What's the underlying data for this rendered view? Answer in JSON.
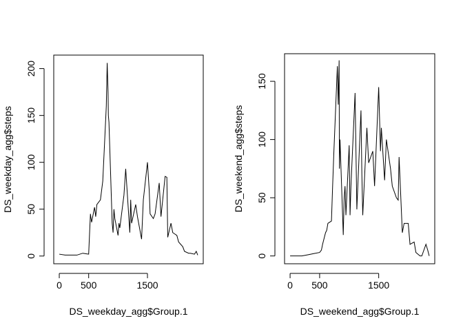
{
  "chart_data": [
    {
      "type": "line",
      "xlabel": "DS_weekday_agg$Group.1",
      "ylabel": "DS_weekday_agg$steps",
      "x": [
        0,
        100,
        200,
        300,
        400,
        500,
        530,
        550,
        600,
        620,
        640,
        700,
        720,
        740,
        800,
        815,
        830,
        835,
        845,
        900,
        915,
        930,
        945,
        1000,
        1015,
        1030,
        1100,
        1130,
        1200,
        1215,
        1230,
        1300,
        1330,
        1400,
        1430,
        1500,
        1530,
        1545,
        1600,
        1630,
        1700,
        1730,
        1800,
        1830,
        1845,
        1900,
        1930,
        2000,
        2030,
        2100,
        2130,
        2200,
        2230,
        2300,
        2330,
        2355
      ],
      "series": [
        {
          "color": "#000000",
          "values": [
            2,
            1,
            1,
            1,
            3,
            2,
            45,
            36,
            52,
            42,
            55,
            60,
            70,
            80,
            160,
            206,
            175,
            150,
            143,
            35,
            25,
            50,
            40,
            22,
            35,
            30,
            65,
            93,
            25,
            60,
            35,
            55,
            42,
            18,
            60,
            100,
            70,
            45,
            40,
            45,
            78,
            42,
            85,
            84,
            20,
            35,
            25,
            22,
            15,
            10,
            5,
            3,
            3,
            2,
            5,
            1
          ]
        }
      ],
      "xlim": [
        -94,
        2449
      ],
      "ylim": [
        -8.24,
        214.4
      ],
      "xticks": [
        0,
        500,
        1500
      ],
      "yticks": [
        0,
        50,
        100,
        150,
        200
      ]
    },
    {
      "type": "line",
      "xlabel": "DS_weekend_agg$Group.1",
      "ylabel": "DS_weekend_agg$steps",
      "x": [
        0,
        100,
        200,
        300,
        400,
        500,
        530,
        550,
        600,
        620,
        640,
        700,
        720,
        740,
        800,
        815,
        830,
        835,
        845,
        900,
        915,
        930,
        945,
        1000,
        1015,
        1030,
        1100,
        1130,
        1200,
        1215,
        1230,
        1300,
        1330,
        1400,
        1430,
        1500,
        1530,
        1545,
        1600,
        1630,
        1700,
        1730,
        1800,
        1830,
        1845,
        1900,
        1930,
        2000,
        2030,
        2100,
        2130,
        2200,
        2230,
        2300,
        2330,
        2355
      ],
      "series": [
        {
          "color": "#000000",
          "values": [
            0,
            0,
            0,
            1,
            2,
            3,
            5,
            10,
            20,
            22,
            28,
            30,
            60,
            88,
            163,
            130,
            168,
            75,
            100,
            18,
            50,
            60,
            35,
            95,
            35,
            60,
            140,
            40,
            125,
            70,
            35,
            110,
            80,
            90,
            60,
            145,
            90,
            110,
            65,
            100,
            75,
            60,
            50,
            48,
            85,
            20,
            28,
            28,
            10,
            12,
            3,
            0,
            0,
            10,
            5,
            0
          ]
        }
      ],
      "xlim": [
        -94,
        2449
      ],
      "ylim": [
        -6.7,
        173.7
      ],
      "xticks": [
        0,
        500,
        1500
      ],
      "yticks": [
        0,
        50,
        100,
        150
      ]
    }
  ]
}
